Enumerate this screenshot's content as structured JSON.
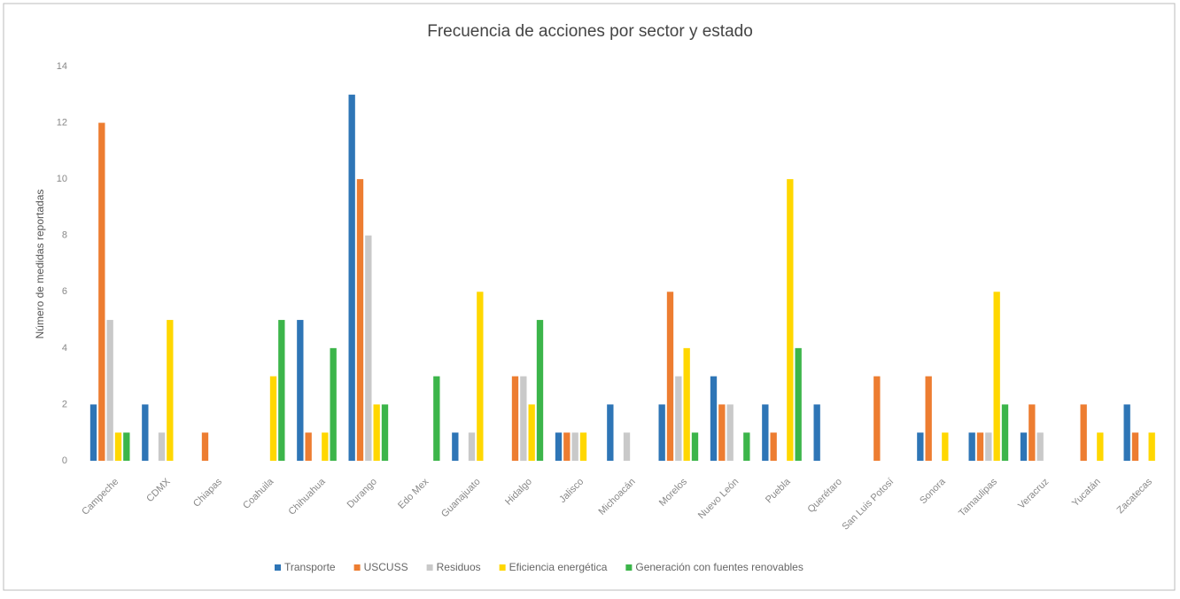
{
  "chart_data": {
    "type": "bar",
    "title": "Frecuencia de acciones por sector y estado",
    "y_label": "Número de medidas reportadas",
    "categories": [
      "Campeche",
      "CDMX",
      "Chiapas",
      "Coahuila",
      "Chihuahua",
      "Durango",
      "Edo Mex",
      "Guanajuato",
      "Hidalgo",
      "Jalisco",
      "Michoacán",
      "Morelos",
      "Nuevo León",
      "Puebla",
      "Querétaro",
      "San Luis Potosí",
      "Sonora",
      "Tamaulipas",
      "Veracruz",
      "Yucatán",
      "Zacatecas"
    ],
    "series": [
      {
        "name": "Transporte",
        "color": "#2e75b6",
        "values": [
          2,
          2,
          0,
          0,
          5,
          13,
          0,
          1,
          0,
          1,
          2,
          2,
          3,
          2,
          2,
          0,
          1,
          1,
          1,
          0,
          2
        ]
      },
      {
        "name": "USCUSS",
        "color": "#ed7d31",
        "values": [
          12,
          0,
          1,
          0,
          1,
          10,
          0,
          0,
          3,
          1,
          0,
          6,
          2,
          1,
          0,
          3,
          3,
          1,
          2,
          2,
          1
        ]
      },
      {
        "name": "Residuos",
        "color": "#c9c9c9",
        "values": [
          5,
          1,
          0,
          0,
          0,
          8,
          0,
          1,
          3,
          1,
          1,
          3,
          2,
          0,
          0,
          0,
          0,
          1,
          1,
          0,
          0
        ]
      },
      {
        "name": "Eficiencia energética",
        "color": "#ffd700",
        "values": [
          1,
          5,
          0,
          3,
          1,
          2,
          0,
          6,
          2,
          1,
          0,
          4,
          0,
          10,
          0,
          0,
          1,
          6,
          0,
          1,
          1
        ]
      },
      {
        "name": "Generación con fuentes renovables",
        "color": "#3cb54a",
        "values": [
          1,
          0,
          0,
          5,
          4,
          2,
          3,
          0,
          5,
          0,
          0,
          1,
          1,
          4,
          0,
          0,
          0,
          2,
          0,
          0,
          0
        ]
      }
    ],
    "ylim": [
      0,
      14
    ],
    "yticks": [
      0,
      2,
      4,
      6,
      8,
      10,
      12,
      14
    ],
    "grid": false,
    "legend": "bottom"
  }
}
